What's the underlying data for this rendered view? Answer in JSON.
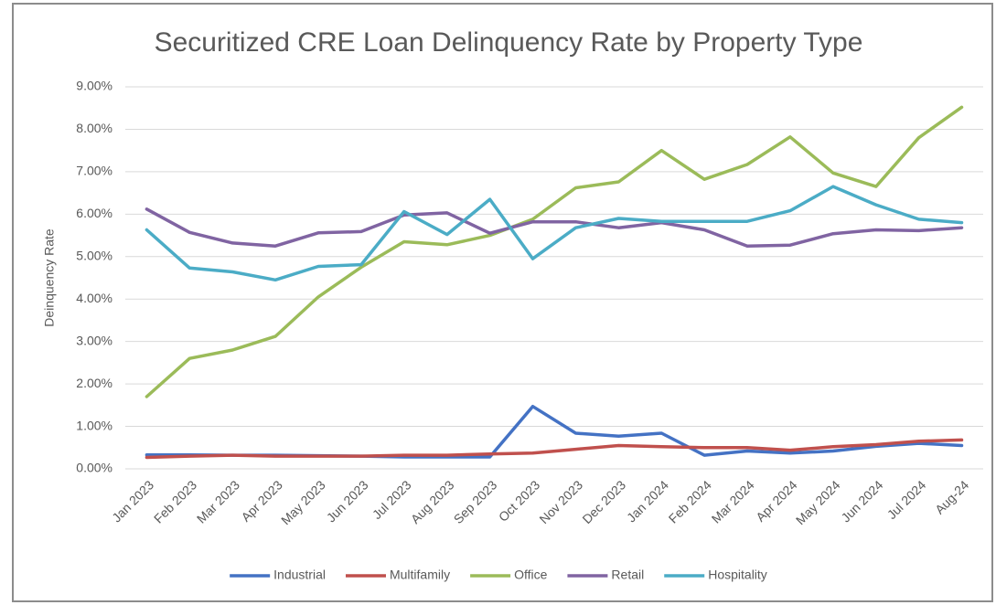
{
  "chart_data": {
    "type": "line",
    "title": "Securitized CRE Loan Delinquency Rate by Property Type",
    "y_label": "Deinquency Rate",
    "categories": [
      "Jan 2023",
      "Feb 2023",
      "Mar 2023",
      "Apr 2023",
      "May 2023",
      "Jun 2023",
      "Jul 2023",
      "Aug 2023",
      "Sep 2023",
      "Oct 2023",
      "Nov 2023",
      "Dec 2023",
      "Jan 2024",
      "Feb 2024",
      "Mar 2024",
      "Apr 2024",
      "May 2024",
      "Jun 2024",
      "Jul 2024",
      "Aug-24"
    ],
    "series": [
      {
        "name": "Industrial",
        "color": "#4472c4",
        "values": [
          0.33,
          0.33,
          0.32,
          0.32,
          0.31,
          0.3,
          0.28,
          0.28,
          0.28,
          1.47,
          0.84,
          0.77,
          0.84,
          0.32,
          0.42,
          0.37,
          0.42,
          0.53,
          0.6,
          0.55
        ]
      },
      {
        "name": "Multifamily",
        "color": "#c0504d",
        "values": [
          0.27,
          0.3,
          0.32,
          0.3,
          0.3,
          0.3,
          0.32,
          0.32,
          0.35,
          0.37,
          0.46,
          0.55,
          0.52,
          0.5,
          0.5,
          0.44,
          0.52,
          0.57,
          0.65,
          0.68
        ]
      },
      {
        "name": "Office",
        "color": "#9bbb59",
        "values": [
          1.7,
          2.6,
          2.8,
          3.12,
          4.05,
          4.75,
          5.35,
          5.28,
          5.5,
          5.88,
          6.62,
          6.76,
          7.5,
          6.82,
          7.17,
          7.82,
          6.97,
          6.65,
          7.8,
          8.52
        ]
      },
      {
        "name": "Retail",
        "color": "#8064a2",
        "values": [
          6.12,
          5.57,
          5.32,
          5.25,
          5.56,
          5.59,
          5.98,
          6.03,
          5.55,
          5.82,
          5.82,
          5.68,
          5.8,
          5.63,
          5.25,
          5.27,
          5.54,
          5.63,
          5.61,
          5.68
        ]
      },
      {
        "name": "Hospitality",
        "color": "#4bacc6",
        "values": [
          5.63,
          4.73,
          4.64,
          4.45,
          4.77,
          4.81,
          6.06,
          5.52,
          6.35,
          4.95,
          5.68,
          5.9,
          5.83,
          5.83,
          5.83,
          6.08,
          6.65,
          6.22,
          5.88,
          5.8
        ]
      }
    ],
    "ylim": [
      0,
      9
    ],
    "yticks": [
      {
        "value": 0,
        "label": "0.00%"
      },
      {
        "value": 1,
        "label": "1.00%"
      },
      {
        "value": 2,
        "label": "2.00%"
      },
      {
        "value": 3,
        "label": "3.00%"
      },
      {
        "value": 4,
        "label": "4.00%"
      },
      {
        "value": 5,
        "label": "5.00%"
      },
      {
        "value": 6,
        "label": "6.00%"
      },
      {
        "value": 7,
        "label": "7.00%"
      },
      {
        "value": 8,
        "label": "8.00%"
      },
      {
        "value": 9,
        "label": "9.00%"
      }
    ],
    "grid": true,
    "legend": "bottom"
  }
}
